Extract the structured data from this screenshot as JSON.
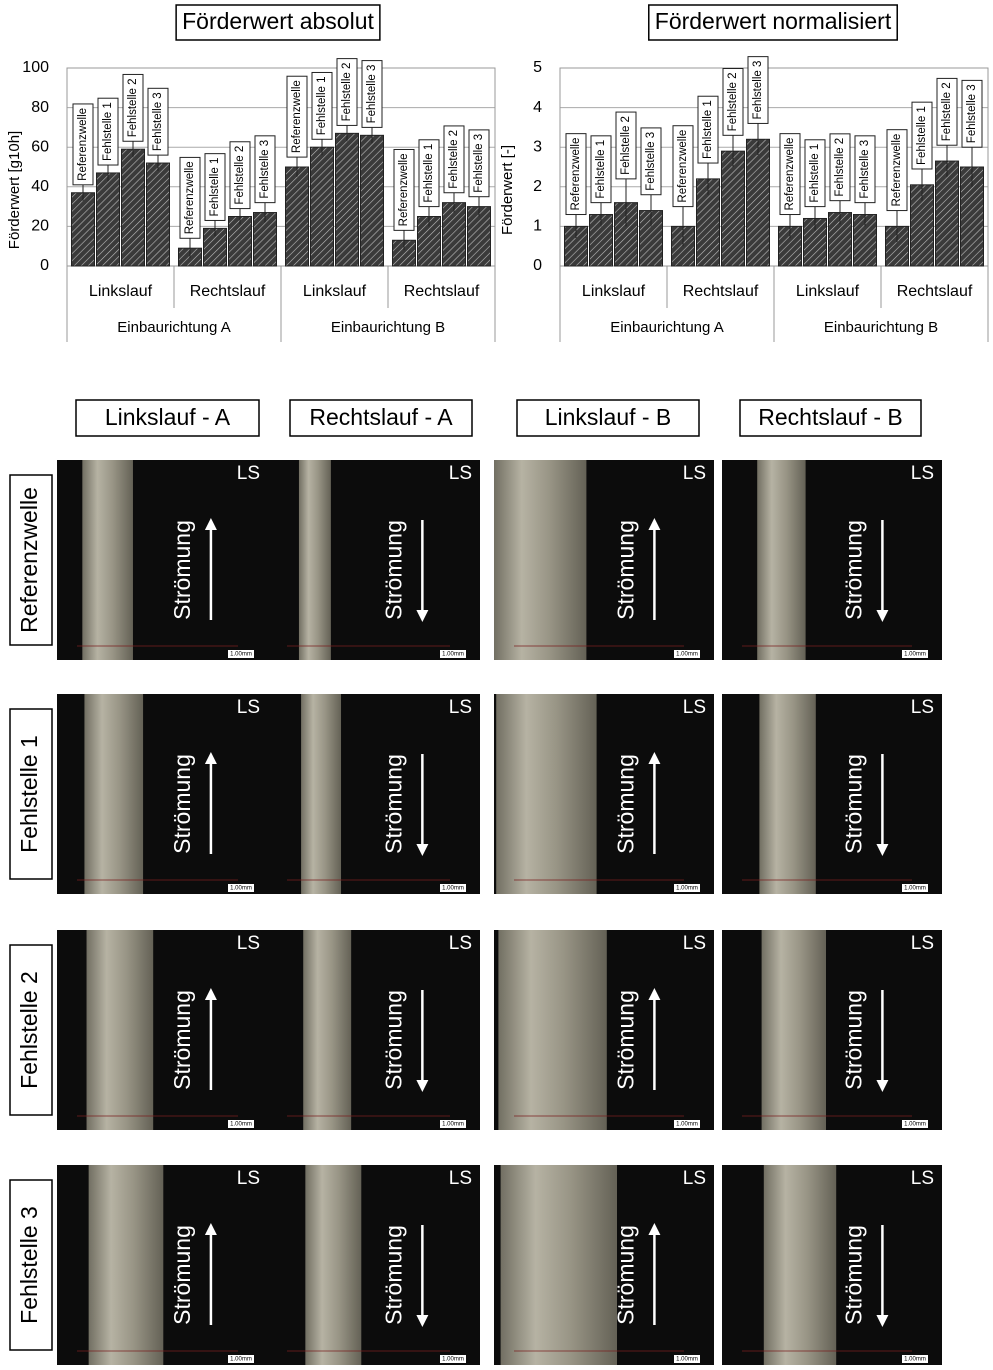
{
  "chart_data": [
    {
      "type": "bar",
      "title": "Förderwert absolut",
      "y_label": "Förderwert [g10h]",
      "categories": [
        "Linkslauf",
        "Rechtslauf",
        "Linkslauf",
        "Rechtslauf"
      ],
      "group_labels": [
        "Einbaurichtung A",
        "Einbaurichtung B"
      ],
      "series": [
        {
          "name": "Referenzwelle",
          "color": "#3a3a3a",
          "values": [
            37,
            9,
            50,
            13
          ],
          "errors": [
            4,
            5,
            5,
            5
          ]
        },
        {
          "name": "Fehlstelle 1",
          "color": "#3a3a3a",
          "values": [
            47,
            19,
            60,
            25
          ],
          "errors": [
            4,
            4,
            4,
            5
          ]
        },
        {
          "name": "Fehlstelle 2",
          "color": "#3a3a3a",
          "values": [
            59,
            25,
            67,
            32
          ],
          "errors": [
            4,
            4,
            4,
            5
          ]
        },
        {
          "name": "Fehlstelle 3",
          "color": "#3a3a3a",
          "values": [
            52,
            27,
            66,
            30
          ],
          "errors": [
            4,
            5,
            4,
            5
          ]
        }
      ],
      "ylim": [
        0,
        100
      ],
      "yticks": [
        0,
        20,
        40,
        60,
        80,
        100
      ],
      "grid": true
    },
    {
      "type": "bar",
      "title": "Förderwert normalisiert",
      "y_label": "Förderwert [-]",
      "categories": [
        "Linkslauf",
        "Rechtslauf",
        "Linkslauf",
        "Rechtslauf"
      ],
      "group_labels": [
        "Einbaurichtung A",
        "Einbaurichtung B"
      ],
      "series": [
        {
          "name": "Referenzwelle",
          "color": "#3a3a3a",
          "values": [
            1,
            1,
            1,
            1
          ],
          "errors": [
            0.3,
            0.5,
            0.3,
            0.4
          ]
        },
        {
          "name": "Fehlstelle 1",
          "color": "#3a3a3a",
          "values": [
            1.3,
            2.2,
            1.2,
            2.05
          ],
          "errors": [
            0.3,
            0.4,
            0.3,
            0.4
          ]
        },
        {
          "name": "Fehlstelle 2",
          "color": "#3a3a3a",
          "values": [
            1.6,
            2.9,
            1.35,
            2.65
          ],
          "errors": [
            0.6,
            0.4,
            0.3,
            0.4
          ]
        },
        {
          "name": "Fehlstelle 3",
          "color": "#3a3a3a",
          "values": [
            1.4,
            3.2,
            1.3,
            2.5
          ],
          "errors": [
            0.4,
            0.4,
            0.3,
            0.5
          ]
        }
      ],
      "ylim": [
        0,
        5
      ],
      "yticks": [
        0,
        1,
        2,
        3,
        4,
        5
      ],
      "grid": true
    }
  ],
  "micrographs": {
    "columns": [
      "Linkslauf - A",
      "Rechtslauf - A",
      "Linkslauf - B",
      "Rechtslauf - B"
    ],
    "rows": [
      "Referenzwelle",
      "Fehlstelle 1",
      "Fehlstelle 2",
      "Fehlstelle 3"
    ],
    "corner_label": "LS",
    "flow_label": "Strömung",
    "scale_label": "1.00mm"
  }
}
